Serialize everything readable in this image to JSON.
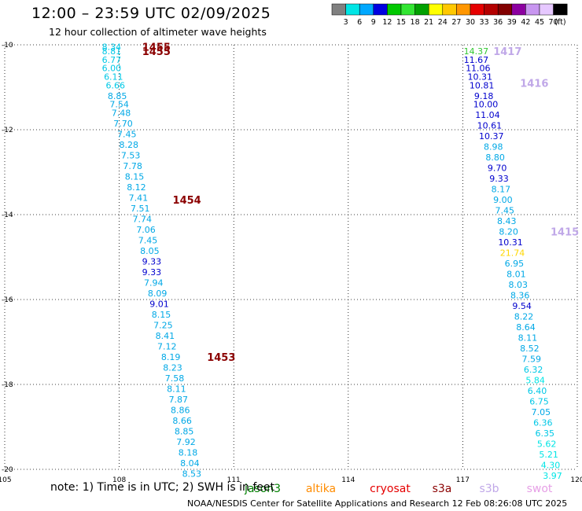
{
  "header": {
    "title": "12:00 – 23:59 UTC 02/09/2025",
    "subtitle": "12 hour collection of altimeter wave heights"
  },
  "colorbar": {
    "colors": [
      "#808080",
      "#00e5e5",
      "#00a8ff",
      "#0000e0",
      "#00c800",
      "#32e632",
      "#00a000",
      "#ffff00",
      "#ffc800",
      "#ff9600",
      "#e60000",
      "#b40000",
      "#820000",
      "#8c00a0",
      "#c896f0",
      "#e6c8ff",
      "#000000"
    ],
    "labels": [
      "3",
      "6",
      "9",
      "12",
      "15",
      "18",
      "21",
      "24",
      "27",
      "30",
      "33",
      "36",
      "39",
      "42",
      "45",
      "70",
      "(ft)"
    ]
  },
  "chart_data": {
    "type": "scatter",
    "xlabel": "",
    "ylabel": "",
    "xlim": [
      105,
      120
    ],
    "ylim": [
      -20,
      -10
    ],
    "x_ticks": [
      "105",
      "108",
      "111",
      "114",
      "117",
      "120"
    ],
    "y_ticks": [
      "-10",
      "-12",
      "-14",
      "-16",
      "-18",
      "-20"
    ],
    "grid": true,
    "track_labels": [
      {
        "label": "1455",
        "x": 108.6,
        "y": -10.05,
        "color": "#8b0000"
      },
      {
        "label": "1455",
        "x": 108.6,
        "y": -10.15,
        "color": "#8b0000"
      },
      {
        "label": "1454",
        "x": 109.4,
        "y": -13.65,
        "color": "#8b0000"
      },
      {
        "label": "1453",
        "x": 110.3,
        "y": -17.35,
        "color": "#8b0000"
      },
      {
        "label": "1417",
        "x": 117.8,
        "y": -10.15,
        "color": "#c0a8e8"
      },
      {
        "label": "1416",
        "x": 118.5,
        "y": -10.9,
        "color": "#c0a8e8"
      },
      {
        "label": "1415",
        "x": 119.3,
        "y": -14.4,
        "color": "#c0a8e8"
      }
    ],
    "points": [
      {
        "x": 107.8,
        "y": -10.05,
        "v": "8.34",
        "c": "#00c8e6"
      },
      {
        "x": 107.8,
        "y": -10.15,
        "v": "8.81",
        "c": "#00c8e6"
      },
      {
        "x": 107.8,
        "y": -10.35,
        "v": "6.77",
        "c": "#00c8e6"
      },
      {
        "x": 107.8,
        "y": -10.55,
        "v": "6.00",
        "c": "#00c8e6"
      },
      {
        "x": 107.85,
        "y": -10.75,
        "v": "6.11",
        "c": "#00c8e6"
      },
      {
        "x": 107.9,
        "y": -10.95,
        "v": "6.66",
        "c": "#00c8e6"
      },
      {
        "x": 107.95,
        "y": -11.2,
        "v": "8.85",
        "c": "#00a8e6"
      },
      {
        "x": 108.0,
        "y": -11.4,
        "v": "7.54",
        "c": "#00a8e6"
      },
      {
        "x": 108.05,
        "y": -11.6,
        "v": "7.48",
        "c": "#00a8e6"
      },
      {
        "x": 108.1,
        "y": -11.85,
        "v": "7.70",
        "c": "#00a8e6"
      },
      {
        "x": 108.2,
        "y": -12.1,
        "v": "7.45",
        "c": "#00a8e6"
      },
      {
        "x": 108.25,
        "y": -12.35,
        "v": "8.28",
        "c": "#00a8e6"
      },
      {
        "x": 108.3,
        "y": -12.6,
        "v": "7.53",
        "c": "#00a8e6"
      },
      {
        "x": 108.35,
        "y": -12.85,
        "v": "7.78",
        "c": "#00a8e6"
      },
      {
        "x": 108.4,
        "y": -13.1,
        "v": "8.15",
        "c": "#00a8e6"
      },
      {
        "x": 108.45,
        "y": -13.35,
        "v": "8.12",
        "c": "#00a8e6"
      },
      {
        "x": 108.5,
        "y": -13.6,
        "v": "7.41",
        "c": "#00a8e6"
      },
      {
        "x": 108.55,
        "y": -13.85,
        "v": "7.51",
        "c": "#00a8e6"
      },
      {
        "x": 108.6,
        "y": -14.1,
        "v": "7.74",
        "c": "#00a8e6"
      },
      {
        "x": 108.7,
        "y": -14.35,
        "v": "7.06",
        "c": "#00a8e6"
      },
      {
        "x": 108.75,
        "y": -14.6,
        "v": "7.45",
        "c": "#00a8e6"
      },
      {
        "x": 108.8,
        "y": -14.85,
        "v": "8.05",
        "c": "#00a8e6"
      },
      {
        "x": 108.85,
        "y": -15.1,
        "v": "9.33",
        "c": "#0000cd"
      },
      {
        "x": 108.85,
        "y": -15.35,
        "v": "9.33",
        "c": "#0000cd"
      },
      {
        "x": 108.9,
        "y": -15.6,
        "v": "7.94",
        "c": "#00a8e6"
      },
      {
        "x": 109.0,
        "y": -15.85,
        "v": "8.09",
        "c": "#00a8e6"
      },
      {
        "x": 109.05,
        "y": -16.1,
        "v": "9.01",
        "c": "#0000cd"
      },
      {
        "x": 109.1,
        "y": -16.35,
        "v": "8.15",
        "c": "#00a8e6"
      },
      {
        "x": 109.15,
        "y": -16.6,
        "v": "7.25",
        "c": "#00a8e6"
      },
      {
        "x": 109.2,
        "y": -16.85,
        "v": "8.41",
        "c": "#00a8e6"
      },
      {
        "x": 109.25,
        "y": -17.1,
        "v": "7.12",
        "c": "#00a8e6"
      },
      {
        "x": 109.35,
        "y": -17.35,
        "v": "8.19",
        "c": "#00a8e6"
      },
      {
        "x": 109.4,
        "y": -17.6,
        "v": "8.23",
        "c": "#00a8e6"
      },
      {
        "x": 109.45,
        "y": -17.85,
        "v": "7.58",
        "c": "#00a8e6"
      },
      {
        "x": 109.5,
        "y": -18.1,
        "v": "8.11",
        "c": "#00a8e6"
      },
      {
        "x": 109.55,
        "y": -18.35,
        "v": "7.87",
        "c": "#00a8e6"
      },
      {
        "x": 109.6,
        "y": -18.6,
        "v": "8.86",
        "c": "#00a8e6"
      },
      {
        "x": 109.65,
        "y": -18.85,
        "v": "8.66",
        "c": "#00a8e6"
      },
      {
        "x": 109.7,
        "y": -19.1,
        "v": "8.85",
        "c": "#00a8e6"
      },
      {
        "x": 109.75,
        "y": -19.35,
        "v": "7.92",
        "c": "#00a8e6"
      },
      {
        "x": 109.8,
        "y": -19.6,
        "v": "8.18",
        "c": "#00a8e6"
      },
      {
        "x": 109.85,
        "y": -19.85,
        "v": "8.04",
        "c": "#00a8e6"
      },
      {
        "x": 109.9,
        "y": -20.1,
        "v": "8.53",
        "c": "#00a8e6"
      },
      {
        "x": 117.35,
        "y": -10.15,
        "v": "14.37",
        "c": "#32c832"
      },
      {
        "x": 117.35,
        "y": -10.35,
        "v": "11.67",
        "c": "#0000cd"
      },
      {
        "x": 117.4,
        "y": -10.55,
        "v": "11.06",
        "c": "#0000cd"
      },
      {
        "x": 117.45,
        "y": -10.75,
        "v": "10.31",
        "c": "#0000cd"
      },
      {
        "x": 117.5,
        "y": -10.95,
        "v": "10.81",
        "c": "#0000cd"
      },
      {
        "x": 117.55,
        "y": -11.2,
        "v": "9.18",
        "c": "#0000cd"
      },
      {
        "x": 117.6,
        "y": -11.4,
        "v": "10.00",
        "c": "#0000cd"
      },
      {
        "x": 117.65,
        "y": -11.65,
        "v": "11.04",
        "c": "#0000cd"
      },
      {
        "x": 117.7,
        "y": -11.9,
        "v": "10.61",
        "c": "#0000cd"
      },
      {
        "x": 117.75,
        "y": -12.15,
        "v": "10.37",
        "c": "#0000cd"
      },
      {
        "x": 117.8,
        "y": -12.4,
        "v": "8.98",
        "c": "#00a8e6"
      },
      {
        "x": 117.85,
        "y": -12.65,
        "v": "8.80",
        "c": "#00a8e6"
      },
      {
        "x": 117.9,
        "y": -12.9,
        "v": "9.70",
        "c": "#0000cd"
      },
      {
        "x": 117.95,
        "y": -13.15,
        "v": "9.33",
        "c": "#0000cd"
      },
      {
        "x": 118.0,
        "y": -13.4,
        "v": "8.17",
        "c": "#00a8e6"
      },
      {
        "x": 118.05,
        "y": -13.65,
        "v": "9.00",
        "c": "#00a8e6"
      },
      {
        "x": 118.1,
        "y": -13.9,
        "v": "7.45",
        "c": "#00a8e6"
      },
      {
        "x": 118.15,
        "y": -14.15,
        "v": "8.43",
        "c": "#00a8e6"
      },
      {
        "x": 118.2,
        "y": -14.4,
        "v": "8.20",
        "c": "#00a8e6"
      },
      {
        "x": 118.25,
        "y": -14.65,
        "v": "10.31",
        "c": "#0000cd"
      },
      {
        "x": 118.3,
        "y": -14.9,
        "v": "21.74",
        "c": "#ffd700"
      },
      {
        "x": 118.35,
        "y": -15.15,
        "v": "6.95",
        "c": "#00a8e6"
      },
      {
        "x": 118.4,
        "y": -15.4,
        "v": "8.01",
        "c": "#00a8e6"
      },
      {
        "x": 118.45,
        "y": -15.65,
        "v": "8.03",
        "c": "#00a8e6"
      },
      {
        "x": 118.5,
        "y": -15.9,
        "v": "8.36",
        "c": "#00a8e6"
      },
      {
        "x": 118.55,
        "y": -16.15,
        "v": "9.54",
        "c": "#0000cd"
      },
      {
        "x": 118.6,
        "y": -16.4,
        "v": "8.22",
        "c": "#00a8e6"
      },
      {
        "x": 118.65,
        "y": -16.65,
        "v": "8.64",
        "c": "#00a8e6"
      },
      {
        "x": 118.7,
        "y": -16.9,
        "v": "8.11",
        "c": "#00a8e6"
      },
      {
        "x": 118.75,
        "y": -17.15,
        "v": "8.52",
        "c": "#00a8e6"
      },
      {
        "x": 118.8,
        "y": -17.4,
        "v": "7.59",
        "c": "#00a8e6"
      },
      {
        "x": 118.85,
        "y": -17.65,
        "v": "6.32",
        "c": "#00c8e6"
      },
      {
        "x": 118.9,
        "y": -17.9,
        "v": "5.84",
        "c": "#00e5e5"
      },
      {
        "x": 118.95,
        "y": -18.15,
        "v": "6.40",
        "c": "#00c8e6"
      },
      {
        "x": 119.0,
        "y": -18.4,
        "v": "6.75",
        "c": "#00c8e6"
      },
      {
        "x": 119.05,
        "y": -18.65,
        "v": "7.05",
        "c": "#00a8e6"
      },
      {
        "x": 119.1,
        "y": -18.9,
        "v": "6.36",
        "c": "#00c8e6"
      },
      {
        "x": 119.15,
        "y": -19.15,
        "v": "6.35",
        "c": "#00c8e6"
      },
      {
        "x": 119.2,
        "y": -19.4,
        "v": "5.62",
        "c": "#00e5e5"
      },
      {
        "x": 119.25,
        "y": -19.65,
        "v": "5.21",
        "c": "#00e5e5"
      },
      {
        "x": 119.3,
        "y": -19.9,
        "v": "4.30",
        "c": "#00e5e5"
      },
      {
        "x": 119.35,
        "y": -20.15,
        "v": "3.97",
        "c": "#00e5e5"
      }
    ]
  },
  "footer": {
    "note": "note: 1) Time is in UTC; 2) SWH is in feet",
    "satellites": [
      {
        "name": "jason3",
        "color": "#008000"
      },
      {
        "name": "altika",
        "color": "#ff8c00"
      },
      {
        "name": "cryosat",
        "color": "#e60000"
      },
      {
        "name": "s3a",
        "color": "#8b0000"
      },
      {
        "name": "s3b",
        "color": "#c0a8e8"
      },
      {
        "name": "swot",
        "color": "#e6a0e6"
      }
    ],
    "credit": "NOAA/NESDIS Center for Satellite Applications and Research     12 Feb 08:26:08 UTC 2025"
  }
}
